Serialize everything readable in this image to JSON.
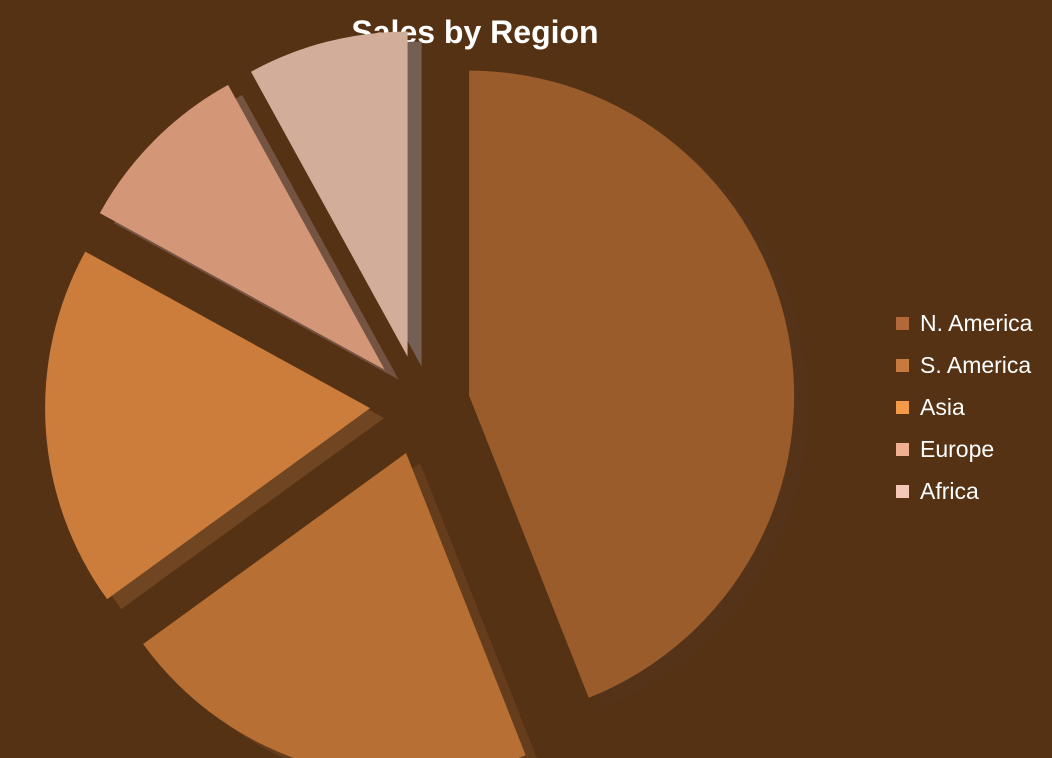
{
  "chart_data": {
    "type": "pie",
    "title": "Sales by Region",
    "legend_position": "right",
    "categories": [
      "N. America",
      "S. America",
      "Asia",
      "Europe",
      "Africa"
    ],
    "values": [
      44,
      21,
      18,
      9,
      8
    ],
    "colors": [
      "#9a5c2b",
      "#b76f33",
      "#cc7d3c",
      "#d39778",
      "#d2ad9a"
    ],
    "legend_colors": [
      "#b3683a",
      "#c8793d",
      "#f39a4b",
      "#f0b092",
      "#f4c7b6"
    ]
  }
}
